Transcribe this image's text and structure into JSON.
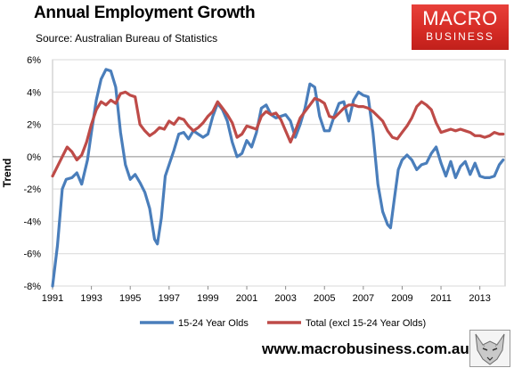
{
  "header": {
    "title": "Annual Employment Growth",
    "subtitle": "Source: Australian Bureau of Statistics"
  },
  "logo": {
    "line1": "MACRO",
    "line2": "BUSINESS"
  },
  "footer": {
    "url": "www.macrobusiness.com.au"
  },
  "chart_data": {
    "type": "line",
    "title": "Annual Employment Growth",
    "ylabel": "Trend",
    "xlim": [
      1991.0,
      2014.3
    ],
    "ylim": [
      -8,
      6
    ],
    "yticks": [
      {
        "value": 6,
        "label": "6%"
      },
      {
        "value": 4,
        "label": "4%"
      },
      {
        "value": 2,
        "label": "2%"
      },
      {
        "value": 0,
        "label": "0%"
      },
      {
        "value": -2,
        "label": "-2%"
      },
      {
        "value": -4,
        "label": "-4%"
      },
      {
        "value": -6,
        "label": "-6%"
      },
      {
        "value": -8,
        "label": "-8%"
      }
    ],
    "xticks": [
      {
        "value": 1991,
        "label": "1991"
      },
      {
        "value": 1993,
        "label": "1993"
      },
      {
        "value": 1995,
        "label": "1995"
      },
      {
        "value": 1997,
        "label": "1997"
      },
      {
        "value": 1999,
        "label": "1999"
      },
      {
        "value": 2001,
        "label": "2001"
      },
      {
        "value": 2003,
        "label": "2003"
      },
      {
        "value": 2005,
        "label": "2005"
      },
      {
        "value": 2007,
        "label": "2007"
      },
      {
        "value": 2009,
        "label": "2009"
      },
      {
        "value": 2011,
        "label": "2011"
      },
      {
        "value": 2013,
        "label": "2013"
      }
    ],
    "grid": "horizontal",
    "legend_position": "bottom",
    "series": [
      {
        "name": "15-24 Year Olds",
        "color": "#4a7ebb",
        "points": [
          [
            1991.0,
            -8.0
          ],
          [
            1991.25,
            -5.5
          ],
          [
            1991.5,
            -2.0
          ],
          [
            1991.7,
            -1.4
          ],
          [
            1992.0,
            -1.3
          ],
          [
            1992.25,
            -1.0
          ],
          [
            1992.5,
            -1.7
          ],
          [
            1992.8,
            -0.2
          ],
          [
            1993.0,
            1.5
          ],
          [
            1993.25,
            3.5
          ],
          [
            1993.5,
            4.8
          ],
          [
            1993.75,
            5.4
          ],
          [
            1994.0,
            5.3
          ],
          [
            1994.25,
            4.3
          ],
          [
            1994.5,
            1.5
          ],
          [
            1994.75,
            -0.5
          ],
          [
            1995.0,
            -1.4
          ],
          [
            1995.25,
            -1.1
          ],
          [
            1995.5,
            -1.6
          ],
          [
            1995.75,
            -2.2
          ],
          [
            1996.0,
            -3.2
          ],
          [
            1996.25,
            -5.1
          ],
          [
            1996.4,
            -5.4
          ],
          [
            1996.6,
            -3.8
          ],
          [
            1996.8,
            -1.2
          ],
          [
            1997.0,
            -0.5
          ],
          [
            1997.25,
            0.4
          ],
          [
            1997.5,
            1.4
          ],
          [
            1997.75,
            1.5
          ],
          [
            1998.0,
            1.1
          ],
          [
            1998.25,
            1.6
          ],
          [
            1998.5,
            1.4
          ],
          [
            1998.75,
            1.2
          ],
          [
            1999.0,
            1.4
          ],
          [
            1999.25,
            2.5
          ],
          [
            1999.5,
            3.3
          ],
          [
            1999.75,
            2.9
          ],
          [
            2000.0,
            2.2
          ],
          [
            2000.25,
            0.9
          ],
          [
            2000.5,
            0.0
          ],
          [
            2000.75,
            0.2
          ],
          [
            2001.0,
            1.0
          ],
          [
            2001.25,
            0.6
          ],
          [
            2001.5,
            1.5
          ],
          [
            2001.75,
            3.0
          ],
          [
            2002.0,
            3.2
          ],
          [
            2002.25,
            2.6
          ],
          [
            2002.5,
            2.4
          ],
          [
            2002.75,
            2.5
          ],
          [
            2003.0,
            2.6
          ],
          [
            2003.25,
            2.2
          ],
          [
            2003.5,
            1.2
          ],
          [
            2003.75,
            2.0
          ],
          [
            2004.0,
            3.0
          ],
          [
            2004.25,
            4.5
          ],
          [
            2004.5,
            4.3
          ],
          [
            2004.75,
            2.5
          ],
          [
            2005.0,
            1.6
          ],
          [
            2005.25,
            1.6
          ],
          [
            2005.5,
            2.5
          ],
          [
            2005.75,
            3.3
          ],
          [
            2006.0,
            3.4
          ],
          [
            2006.25,
            2.2
          ],
          [
            2006.5,
            3.5
          ],
          [
            2006.75,
            4.0
          ],
          [
            2007.0,
            3.8
          ],
          [
            2007.25,
            3.7
          ],
          [
            2007.5,
            1.5
          ],
          [
            2007.75,
            -1.7
          ],
          [
            2008.0,
            -3.4
          ],
          [
            2008.25,
            -4.2
          ],
          [
            2008.4,
            -4.4
          ],
          [
            2008.6,
            -2.6
          ],
          [
            2008.8,
            -0.8
          ],
          [
            2009.0,
            -0.2
          ],
          [
            2009.25,
            0.1
          ],
          [
            2009.5,
            -0.2
          ],
          [
            2009.75,
            -0.8
          ],
          [
            2010.0,
            -0.5
          ],
          [
            2010.25,
            -0.4
          ],
          [
            2010.5,
            0.2
          ],
          [
            2010.75,
            0.6
          ],
          [
            2011.0,
            -0.4
          ],
          [
            2011.25,
            -1.2
          ],
          [
            2011.5,
            -0.3
          ],
          [
            2011.75,
            -1.3
          ],
          [
            2012.0,
            -0.6
          ],
          [
            2012.25,
            -0.3
          ],
          [
            2012.5,
            -1.1
          ],
          [
            2012.75,
            -0.4
          ],
          [
            2013.0,
            -1.2
          ],
          [
            2013.25,
            -1.3
          ],
          [
            2013.5,
            -1.3
          ],
          [
            2013.75,
            -1.2
          ],
          [
            2014.0,
            -0.5
          ],
          [
            2014.2,
            -0.2
          ]
        ]
      },
      {
        "name": "Total (excl 15-24 Year Olds)",
        "color": "#be4b48",
        "points": [
          [
            1991.0,
            -1.2
          ],
          [
            1991.25,
            -0.6
          ],
          [
            1991.5,
            0.0
          ],
          [
            1991.75,
            0.6
          ],
          [
            1992.0,
            0.3
          ],
          [
            1992.25,
            -0.2
          ],
          [
            1992.5,
            0.1
          ],
          [
            1992.75,
            0.9
          ],
          [
            1993.0,
            2.0
          ],
          [
            1993.25,
            2.9
          ],
          [
            1993.5,
            3.4
          ],
          [
            1993.75,
            3.2
          ],
          [
            1994.0,
            3.5
          ],
          [
            1994.25,
            3.3
          ],
          [
            1994.5,
            3.9
          ],
          [
            1994.75,
            4.0
          ],
          [
            1995.0,
            3.8
          ],
          [
            1995.25,
            3.7
          ],
          [
            1995.5,
            2.0
          ],
          [
            1995.75,
            1.6
          ],
          [
            1996.0,
            1.3
          ],
          [
            1996.25,
            1.5
          ],
          [
            1996.5,
            1.8
          ],
          [
            1996.75,
            1.7
          ],
          [
            1997.0,
            2.2
          ],
          [
            1997.25,
            2.0
          ],
          [
            1997.5,
            2.4
          ],
          [
            1997.75,
            2.3
          ],
          [
            1998.0,
            1.9
          ],
          [
            1998.25,
            1.6
          ],
          [
            1998.5,
            1.8
          ],
          [
            1998.75,
            2.1
          ],
          [
            1999.0,
            2.5
          ],
          [
            1999.25,
            2.8
          ],
          [
            1999.5,
            3.4
          ],
          [
            1999.75,
            3.0
          ],
          [
            2000.0,
            2.6
          ],
          [
            2000.25,
            2.1
          ],
          [
            2000.5,
            1.2
          ],
          [
            2000.75,
            1.4
          ],
          [
            2001.0,
            1.9
          ],
          [
            2001.25,
            1.8
          ],
          [
            2001.5,
            1.7
          ],
          [
            2001.75,
            2.5
          ],
          [
            2002.0,
            2.8
          ],
          [
            2002.25,
            2.6
          ],
          [
            2002.5,
            2.7
          ],
          [
            2002.75,
            2.3
          ],
          [
            2003.0,
            1.6
          ],
          [
            2003.25,
            0.9
          ],
          [
            2003.5,
            1.6
          ],
          [
            2003.75,
            2.4
          ],
          [
            2004.0,
            2.8
          ],
          [
            2004.25,
            3.2
          ],
          [
            2004.5,
            3.6
          ],
          [
            2004.75,
            3.5
          ],
          [
            2005.0,
            3.3
          ],
          [
            2005.25,
            2.5
          ],
          [
            2005.5,
            2.4
          ],
          [
            2005.75,
            2.7
          ],
          [
            2006.0,
            3.0
          ],
          [
            2006.25,
            3.2
          ],
          [
            2006.5,
            3.2
          ],
          [
            2006.75,
            3.1
          ],
          [
            2007.0,
            3.1
          ],
          [
            2007.25,
            3.0
          ],
          [
            2007.5,
            2.8
          ],
          [
            2007.75,
            2.5
          ],
          [
            2008.0,
            2.2
          ],
          [
            2008.25,
            1.6
          ],
          [
            2008.5,
            1.2
          ],
          [
            2008.75,
            1.1
          ],
          [
            2009.0,
            1.5
          ],
          [
            2009.25,
            1.9
          ],
          [
            2009.5,
            2.4
          ],
          [
            2009.75,
            3.1
          ],
          [
            2010.0,
            3.4
          ],
          [
            2010.25,
            3.2
          ],
          [
            2010.5,
            2.9
          ],
          [
            2010.75,
            2.1
          ],
          [
            2011.0,
            1.5
          ],
          [
            2011.25,
            1.6
          ],
          [
            2011.5,
            1.7
          ],
          [
            2011.75,
            1.6
          ],
          [
            2012.0,
            1.7
          ],
          [
            2012.25,
            1.6
          ],
          [
            2012.5,
            1.5
          ],
          [
            2012.75,
            1.3
          ],
          [
            2013.0,
            1.3
          ],
          [
            2013.25,
            1.2
          ],
          [
            2013.5,
            1.3
          ],
          [
            2013.75,
            1.5
          ],
          [
            2014.0,
            1.4
          ],
          [
            2014.2,
            1.4
          ]
        ]
      }
    ]
  }
}
